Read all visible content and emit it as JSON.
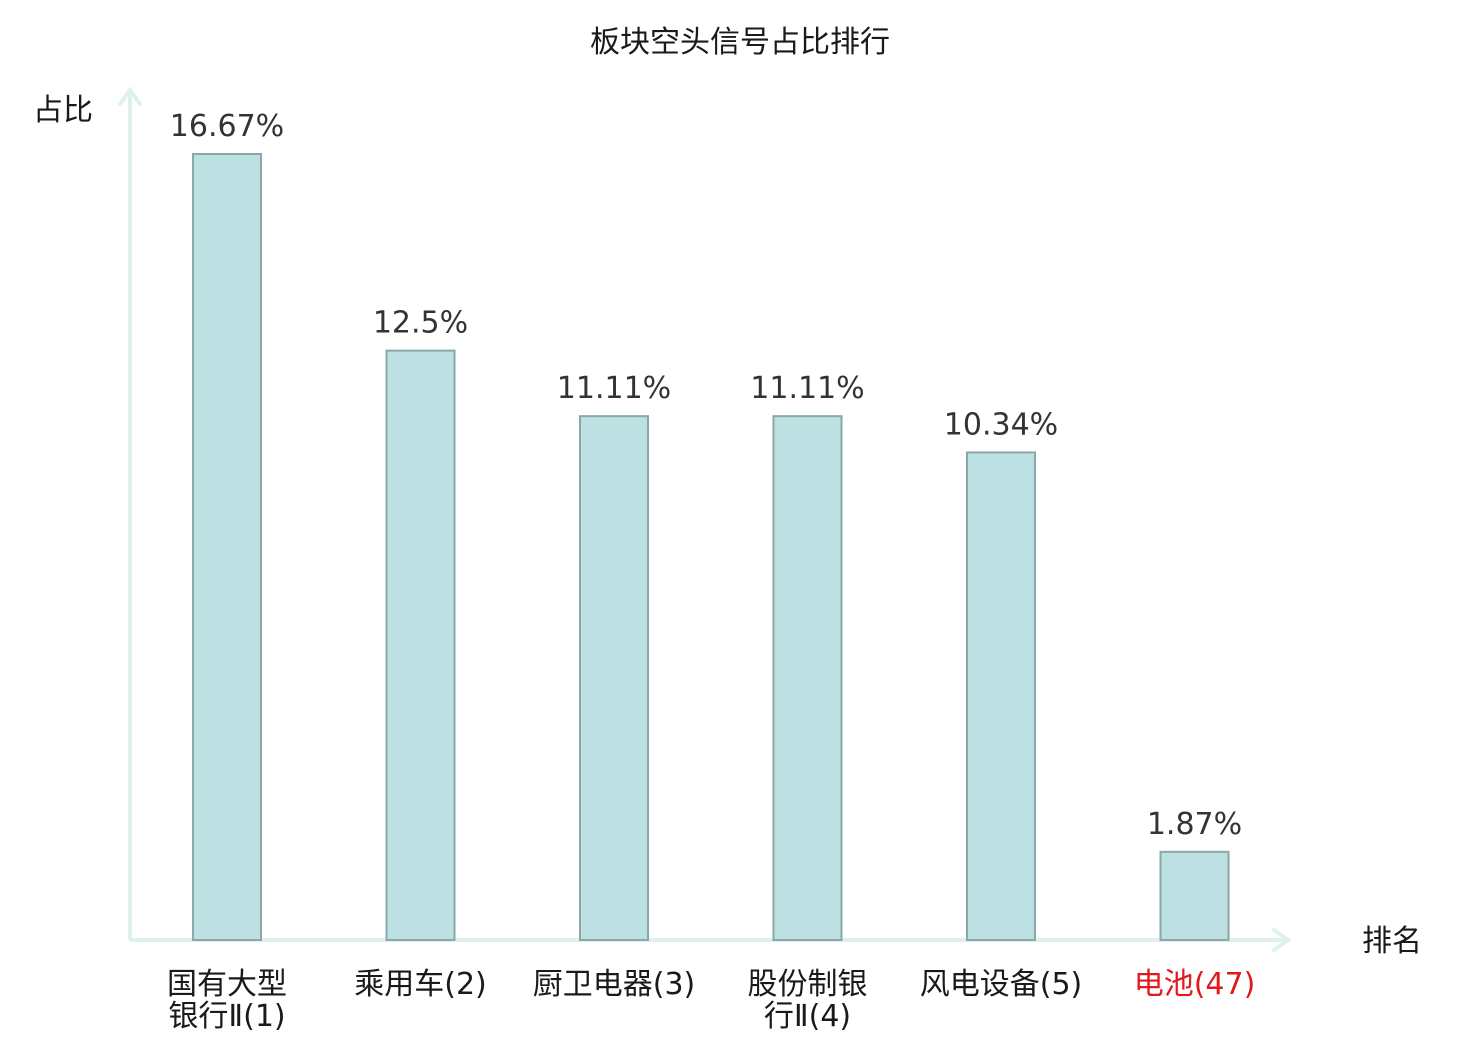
{
  "chart_data": {
    "type": "bar",
    "title": "板块空头信号占比排行",
    "ylabel": "占比",
    "xlabel": "排名",
    "categories": [
      {
        "lines": [
          "国有大型",
          "银行Ⅱ(1)"
        ],
        "highlight": false
      },
      {
        "lines": [
          "乘用车(2)"
        ],
        "highlight": false
      },
      {
        "lines": [
          "厨卫电器(3)"
        ],
        "highlight": false
      },
      {
        "lines": [
          "股份制银",
          "行Ⅱ(4)"
        ],
        "highlight": false
      },
      {
        "lines": [
          "风电设备(5)"
        ],
        "highlight": false
      },
      {
        "lines": [
          "电池(47)"
        ],
        "highlight": true
      }
    ],
    "values": [
      16.67,
      12.5,
      11.11,
      11.11,
      10.34,
      1.87
    ],
    "value_labels": [
      "16.67%",
      "12.5%",
      "11.11%",
      "11.11%",
      "10.34%",
      "1.87%"
    ],
    "ylim": [
      0,
      18
    ],
    "grid": false,
    "legend": "none",
    "colors": {
      "bar_fill": "#bde0e3",
      "bar_stroke": "#8aa8aa",
      "axis": "#dff1ee",
      "highlight_text": "#e0191f",
      "normal_text": "#1a1a1a"
    }
  }
}
